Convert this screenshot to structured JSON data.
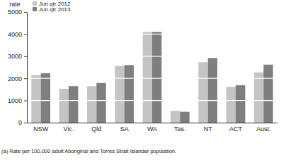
{
  "chart_data": {
    "type": "bar",
    "y_label": "rate",
    "footnote": "(a) Rate per 100,000 adult Aboriginal and Torres Strait Islander population.",
    "categories": [
      "NSW",
      "Vic.",
      "Qld",
      "SA",
      "WA",
      "Tas.",
      "NT",
      "ACT",
      "Aust."
    ],
    "series": [
      {
        "name": "Jun qtr 2012",
        "color": "#c4c4c4",
        "values": [
          2150,
          1530,
          1650,
          2560,
          4100,
          530,
          2730,
          1620,
          2270
        ]
      },
      {
        "name": "Jun qtr 2013",
        "color": "#7f7f7f",
        "values": [
          2230,
          1650,
          1790,
          2600,
          4100,
          490,
          2920,
          1690,
          2620
        ]
      }
    ],
    "ylim": [
      0,
      5000
    ],
    "yticks": [
      0,
      1000,
      2000,
      3000,
      4000,
      5000
    ],
    "grid": true,
    "legend": "top-left"
  }
}
